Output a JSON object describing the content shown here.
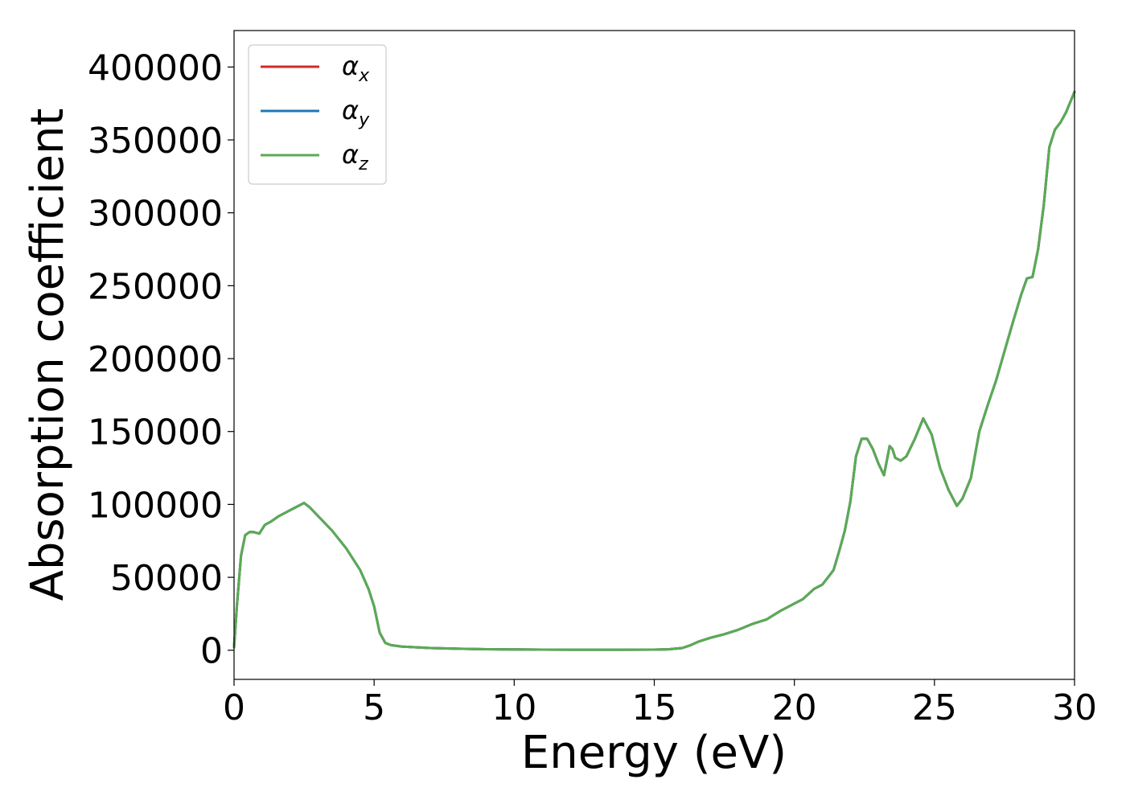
{
  "chart_data": {
    "type": "line",
    "title": "",
    "xlabel": "Energy (eV)",
    "ylabel": "Absorption coefficient",
    "xlim": [
      0,
      30
    ],
    "ylim": [
      -20000,
      425000
    ],
    "xticks": [
      "0",
      "5",
      "10",
      "15",
      "20",
      "25",
      "30"
    ],
    "yticks": [
      "0",
      "50000",
      "100000",
      "150000",
      "200000",
      "250000",
      "300000",
      "350000",
      "400000"
    ],
    "grid": false,
    "legend_position": "top-left",
    "x": [
      0,
      0.1,
      0.25,
      0.4,
      0.55,
      0.7,
      0.9,
      1.1,
      1.3,
      1.6,
      1.9,
      2.2,
      2.5,
      2.7,
      3.0,
      3.5,
      4.0,
      4.5,
      4.8,
      5.0,
      5.2,
      5.4,
      5.6,
      6.0,
      7.0,
      8.0,
      9.0,
      10.0,
      11.0,
      12.0,
      13.0,
      14.0,
      15.0,
      15.5,
      16.0,
      16.3,
      16.6,
      17.0,
      17.5,
      18.0,
      18.5,
      19.0,
      19.5,
      20.0,
      20.3,
      20.7,
      21.0,
      21.2,
      21.4,
      21.6,
      21.8,
      22.0,
      22.2,
      22.4,
      22.6,
      22.8,
      23.0,
      23.2,
      23.4,
      23.5,
      23.6,
      23.8,
      24.0,
      24.3,
      24.6,
      24.9,
      25.2,
      25.5,
      25.8,
      26.0,
      26.3,
      26.6,
      26.9,
      27.2,
      27.5,
      27.8,
      28.1,
      28.3,
      28.5,
      28.7,
      28.9,
      29.1,
      29.3,
      29.5,
      29.7,
      30.0
    ],
    "series": [
      {
        "name": "α_x",
        "color": "#d62728",
        "values": [
          2000,
          30000,
          65000,
          79000,
          81000,
          81000,
          80000,
          86000,
          88000,
          92000,
          95000,
          98000,
          101000,
          98000,
          92000,
          82000,
          70000,
          55000,
          42000,
          30000,
          12000,
          5000,
          3500,
          2500,
          1500,
          1000,
          700,
          500,
          400,
          350,
          350,
          350,
          400,
          600,
          1500,
          3500,
          6000,
          8500,
          11000,
          14000,
          18000,
          21000,
          27000,
          32000,
          35000,
          42000,
          45000,
          50000,
          55000,
          68000,
          82000,
          102000,
          133000,
          145000,
          145000,
          138000,
          128000,
          120000,
          140000,
          138000,
          132000,
          130000,
          133000,
          145000,
          159000,
          148000,
          125000,
          110000,
          99000,
          104000,
          118000,
          150000,
          168000,
          185000,
          205000,
          225000,
          244000,
          255000,
          256000,
          275000,
          305000,
          345000,
          357000,
          362000,
          369000,
          383000
        ]
      },
      {
        "name": "α_y",
        "color": "#1f77b4",
        "values": [
          2000,
          30000,
          65000,
          79000,
          81000,
          81000,
          80000,
          86000,
          88000,
          92000,
          95000,
          98000,
          101000,
          98000,
          92000,
          82000,
          70000,
          55000,
          42000,
          30000,
          12000,
          5000,
          3500,
          2500,
          1500,
          1000,
          700,
          500,
          400,
          350,
          350,
          350,
          400,
          600,
          1500,
          3500,
          6000,
          8500,
          11000,
          14000,
          18000,
          21000,
          27000,
          32000,
          35000,
          42000,
          45000,
          50000,
          55000,
          68000,
          82000,
          102000,
          133000,
          145000,
          145000,
          138000,
          128000,
          120000,
          140000,
          138000,
          132000,
          130000,
          133000,
          145000,
          159000,
          148000,
          125000,
          110000,
          99000,
          104000,
          118000,
          150000,
          168000,
          185000,
          205000,
          225000,
          244000,
          255000,
          256000,
          275000,
          305000,
          345000,
          357000,
          362000,
          369000,
          383000
        ]
      },
      {
        "name": "α_z",
        "color": "#5aab54",
        "values": [
          2000,
          30000,
          65000,
          79000,
          81000,
          81000,
          80000,
          86000,
          88000,
          92000,
          95000,
          98000,
          101000,
          98000,
          92000,
          82000,
          70000,
          55000,
          42000,
          30000,
          12000,
          5000,
          3500,
          2500,
          1500,
          1000,
          700,
          500,
          400,
          350,
          350,
          350,
          400,
          600,
          1500,
          3500,
          6000,
          8500,
          11000,
          14000,
          18000,
          21000,
          27000,
          32000,
          35000,
          42000,
          45000,
          50000,
          55000,
          68000,
          82000,
          102000,
          133000,
          145000,
          145000,
          138000,
          128000,
          120000,
          140000,
          138000,
          132000,
          130000,
          133000,
          145000,
          159000,
          148000,
          125000,
          110000,
          99000,
          104000,
          118000,
          150000,
          168000,
          185000,
          205000,
          225000,
          244000,
          255000,
          256000,
          275000,
          305000,
          345000,
          357000,
          362000,
          369000,
          383000
        ]
      }
    ],
    "legend": [
      {
        "symbol": "α",
        "subscript": "x",
        "color": "#d62728"
      },
      {
        "symbol": "α",
        "subscript": "y",
        "color": "#1f77b4"
      },
      {
        "symbol": "α",
        "subscript": "z",
        "color": "#5aab54"
      }
    ]
  }
}
